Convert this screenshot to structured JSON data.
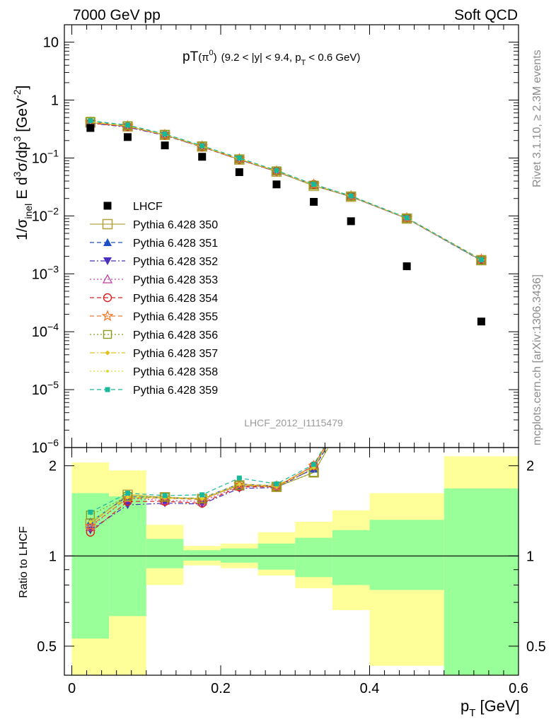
{
  "header": {
    "left": "7000 GeV pp",
    "right": "Soft QCD"
  },
  "title": {
    "main": "pT",
    "paren": "(π",
    "paren_sup": "0",
    "paren_close": ")",
    "range": "(9.2 < |y| < 9.4, p",
    "range_sub": "T",
    "range_end": " < 0.6 GeV)"
  },
  "side": {
    "rivet": "Rivet 3.1.10, ≥ 2.3M events",
    "mcplots": "mcplots.cern.ch [arXiv:1306.3436]"
  },
  "watermark": "LHCF_2012_I1115479",
  "axes": {
    "ylabel_main_parts": [
      "1/σ",
      "inel",
      " E d",
      "3",
      "σ/dp",
      "3",
      " [GeV",
      "-2",
      "]"
    ],
    "ylabel_ratio": "Ratio to LHCF",
    "xlabel": "p",
    "xlabel_sub": "T",
    "xlabel_unit": " [GeV]",
    "x_ticks": [
      "0",
      "0.2",
      "0.4",
      "0.6"
    ],
    "main_y_ticks": [
      {
        "m": "10",
        "e": ""
      },
      {
        "m": "1",
        "e": ""
      },
      {
        "m": "10",
        "e": "−1"
      },
      {
        "m": "10",
        "e": "−2"
      },
      {
        "m": "10",
        "e": "−3"
      },
      {
        "m": "10",
        "e": "−4"
      },
      {
        "m": "10",
        "e": "−5"
      },
      {
        "m": "10",
        "e": "−6"
      }
    ],
    "ratio_y_ticks": [
      "2",
      "1",
      "0.5"
    ]
  },
  "chart_data": [
    {
      "type": "line",
      "panel": "main",
      "x_range": [
        -0.01,
        0.6
      ],
      "y_range": [
        1e-06,
        20
      ],
      "y_scale": "log",
      "x": [
        0.025,
        0.075,
        0.125,
        0.175,
        0.225,
        0.275,
        0.325,
        0.375,
        0.45,
        0.55
      ],
      "legend": "left",
      "series": [
        {
          "name": "LHCF",
          "color": "#000000",
          "marker": "square-filled",
          "dash": "none",
          "values": [
            0.33,
            0.23,
            0.165,
            0.105,
            0.057,
            0.035,
            0.0175,
            0.0081,
            0.00135,
            0.00015
          ]
        },
        {
          "name": "Pythia 6.428 350",
          "color": "#b5a642",
          "marker": "square-open-large",
          "dash": "solid",
          "values": [
            0.41,
            0.35,
            0.25,
            0.158,
            0.094,
            0.058,
            0.033,
            0.0215,
            0.009,
            0.00172
          ]
        },
        {
          "name": "Pythia 6.428 351",
          "color": "#1f4fc4",
          "marker": "triangle-up",
          "dash": "dash",
          "values": [
            0.42,
            0.36,
            0.252,
            0.16,
            0.096,
            0.059,
            0.034,
            0.0216,
            0.0091,
            0.0017
          ]
        },
        {
          "name": "Pythia 6.428 352",
          "color": "#4b2fbf",
          "marker": "triangle-down",
          "dash": "dashdot",
          "values": [
            0.4,
            0.34,
            0.245,
            0.155,
            0.094,
            0.058,
            0.034,
            0.0214,
            0.009,
            0.00168
          ]
        },
        {
          "name": "Pythia 6.428 353",
          "color": "#c43fa0",
          "marker": "triangle-open",
          "dash": "dot",
          "values": [
            0.41,
            0.35,
            0.25,
            0.158,
            0.095,
            0.059,
            0.035,
            0.022,
            0.0092,
            0.00172
          ]
        },
        {
          "name": "Pythia 6.428 354",
          "color": "#d62020",
          "marker": "circle-open",
          "dash": "dash",
          "values": [
            0.4,
            0.35,
            0.248,
            0.156,
            0.094,
            0.059,
            0.035,
            0.0218,
            0.0091,
            0.00175
          ]
        },
        {
          "name": "Pythia 6.428 355",
          "color": "#ef7a2a",
          "marker": "star-open",
          "dash": "dash",
          "values": [
            0.41,
            0.355,
            0.252,
            0.159,
            0.096,
            0.059,
            0.035,
            0.022,
            0.0092,
            0.00178
          ]
        },
        {
          "name": "Pythia 6.428 356",
          "color": "#8a9a1a",
          "marker": "square-open",
          "dash": "dot",
          "values": [
            0.43,
            0.36,
            0.255,
            0.16,
            0.096,
            0.06,
            0.034,
            0.0218,
            0.0091,
            0.00172
          ]
        },
        {
          "name": "Pythia 6.428 357",
          "color": "#e0c020",
          "marker": "diamond-small",
          "dash": "dashdot",
          "values": [
            0.42,
            0.355,
            0.252,
            0.158,
            0.096,
            0.059,
            0.034,
            0.0218,
            0.0091,
            0.00172
          ]
        },
        {
          "name": "Pythia 6.428 358",
          "color": "#d8dc30",
          "marker": "dot-small",
          "dash": "dot",
          "values": [
            0.42,
            0.355,
            0.252,
            0.158,
            0.097,
            0.06,
            0.034,
            0.0218,
            0.0092,
            0.00172
          ]
        },
        {
          "name": "Pythia 6.428 359",
          "color": "#18b89a",
          "marker": "square-small",
          "dash": "dash",
          "values": [
            0.44,
            0.37,
            0.26,
            0.163,
            0.1,
            0.061,
            0.035,
            0.0222,
            0.0093,
            0.00175
          ]
        }
      ]
    },
    {
      "type": "line",
      "panel": "ratio",
      "x_range": [
        -0.01,
        0.6
      ],
      "y_range": [
        0.4,
        2.3
      ],
      "y_scale": "log",
      "reference": 1,
      "x": [
        0.025,
        0.075,
        0.125,
        0.175,
        0.225,
        0.275,
        0.325
      ],
      "bands": {
        "edges": [
          0.0,
          0.05,
          0.1,
          0.15,
          0.2,
          0.25,
          0.3,
          0.35,
          0.4,
          0.5,
          0.6
        ],
        "green": [
          [
            0.53,
            1.62
          ],
          [
            0.63,
            1.58
          ],
          [
            0.91,
            1.14
          ],
          [
            0.965,
            1.045
          ],
          [
            0.95,
            1.06
          ],
          [
            0.9,
            1.1
          ],
          [
            0.85,
            1.15
          ],
          [
            0.8,
            1.22
          ],
          [
            0.77,
            1.32
          ],
          [
            0.4,
            1.68
          ]
        ],
        "yellow": [
          [
            0.4,
            2.05
          ],
          [
            0.4,
            1.93
          ],
          [
            0.8,
            1.27
          ],
          [
            0.93,
            1.08
          ],
          [
            0.91,
            1.1
          ],
          [
            0.86,
            1.2
          ],
          [
            0.78,
            1.3
          ],
          [
            0.66,
            1.42
          ],
          [
            0.43,
            1.62
          ],
          [
            0.4,
            2.15
          ]
        ]
      },
      "series": [
        {
          "name": "Pythia 6.428 350",
          "values": [
            1.28,
            1.6,
            1.57,
            1.55,
            1.72,
            1.7,
            1.9
          ]
        },
        {
          "name": "Pythia 6.428 351",
          "values": [
            1.3,
            1.58,
            1.56,
            1.56,
            1.74,
            1.71,
            1.95
          ]
        },
        {
          "name": "Pythia 6.428 352",
          "values": [
            1.22,
            1.48,
            1.5,
            1.49,
            1.68,
            1.69,
            1.96
          ]
        },
        {
          "name": "Pythia 6.428 353",
          "values": [
            1.25,
            1.56,
            1.53,
            1.52,
            1.71,
            1.71,
            2.0
          ]
        },
        {
          "name": "Pythia 6.428 354",
          "values": [
            1.2,
            1.52,
            1.52,
            1.5,
            1.7,
            1.7,
            2.0
          ]
        },
        {
          "name": "Pythia 6.428 355",
          "values": [
            1.26,
            1.56,
            1.56,
            1.54,
            1.73,
            1.71,
            2.0
          ]
        },
        {
          "name": "Pythia 6.428 356",
          "values": [
            1.37,
            1.58,
            1.57,
            1.55,
            1.72,
            1.7,
            1.9
          ]
        },
        {
          "name": "Pythia 6.428 357",
          "values": [
            1.3,
            1.57,
            1.56,
            1.55,
            1.73,
            1.7,
            1.97
          ]
        },
        {
          "name": "Pythia 6.428 358",
          "values": [
            1.3,
            1.57,
            1.57,
            1.56,
            1.74,
            1.72,
            1.98
          ]
        },
        {
          "name": "Pythia 6.428 359",
          "values": [
            1.4,
            1.62,
            1.59,
            1.6,
            1.82,
            1.74,
            2.02
          ]
        }
      ]
    }
  ]
}
